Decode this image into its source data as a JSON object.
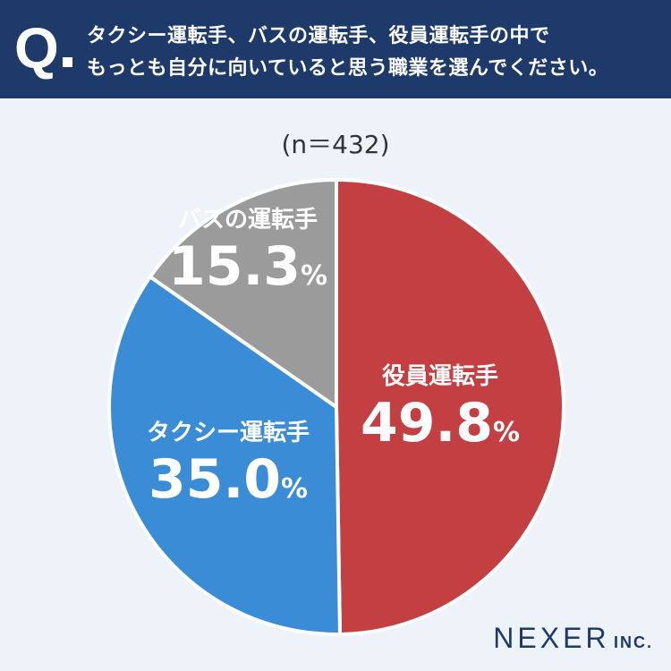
{
  "header": {
    "q_letter": "Q",
    "line1": "タクシー運転手、バスの運転手、役員運転手の中で",
    "line2": "もっとも自分に向いていると思う職業を選んでください。"
  },
  "sample_label": "(n＝432)",
  "colors": {
    "header_bg": "#1e3a6b",
    "background": "#eef3fa",
    "executive": "#c33f41",
    "taxi": "#3a8cd6",
    "bus": "#9b9b9b"
  },
  "chart_data": {
    "type": "pie",
    "title": "",
    "n": 432,
    "slices": [
      {
        "name": "役員運転手",
        "value": 49.8,
        "color": "#c33f41",
        "label": "49.8",
        "unit": "%"
      },
      {
        "name": "タクシー運転手",
        "value": 35.0,
        "color": "#3a8cd6",
        "label": "35.0",
        "unit": "%"
      },
      {
        "name": "バスの運転手",
        "value": 15.3,
        "color": "#9b9b9b",
        "label": "15.3",
        "unit": "%"
      }
    ]
  },
  "logo": {
    "main": "NEXER",
    "suffix": "INC."
  }
}
